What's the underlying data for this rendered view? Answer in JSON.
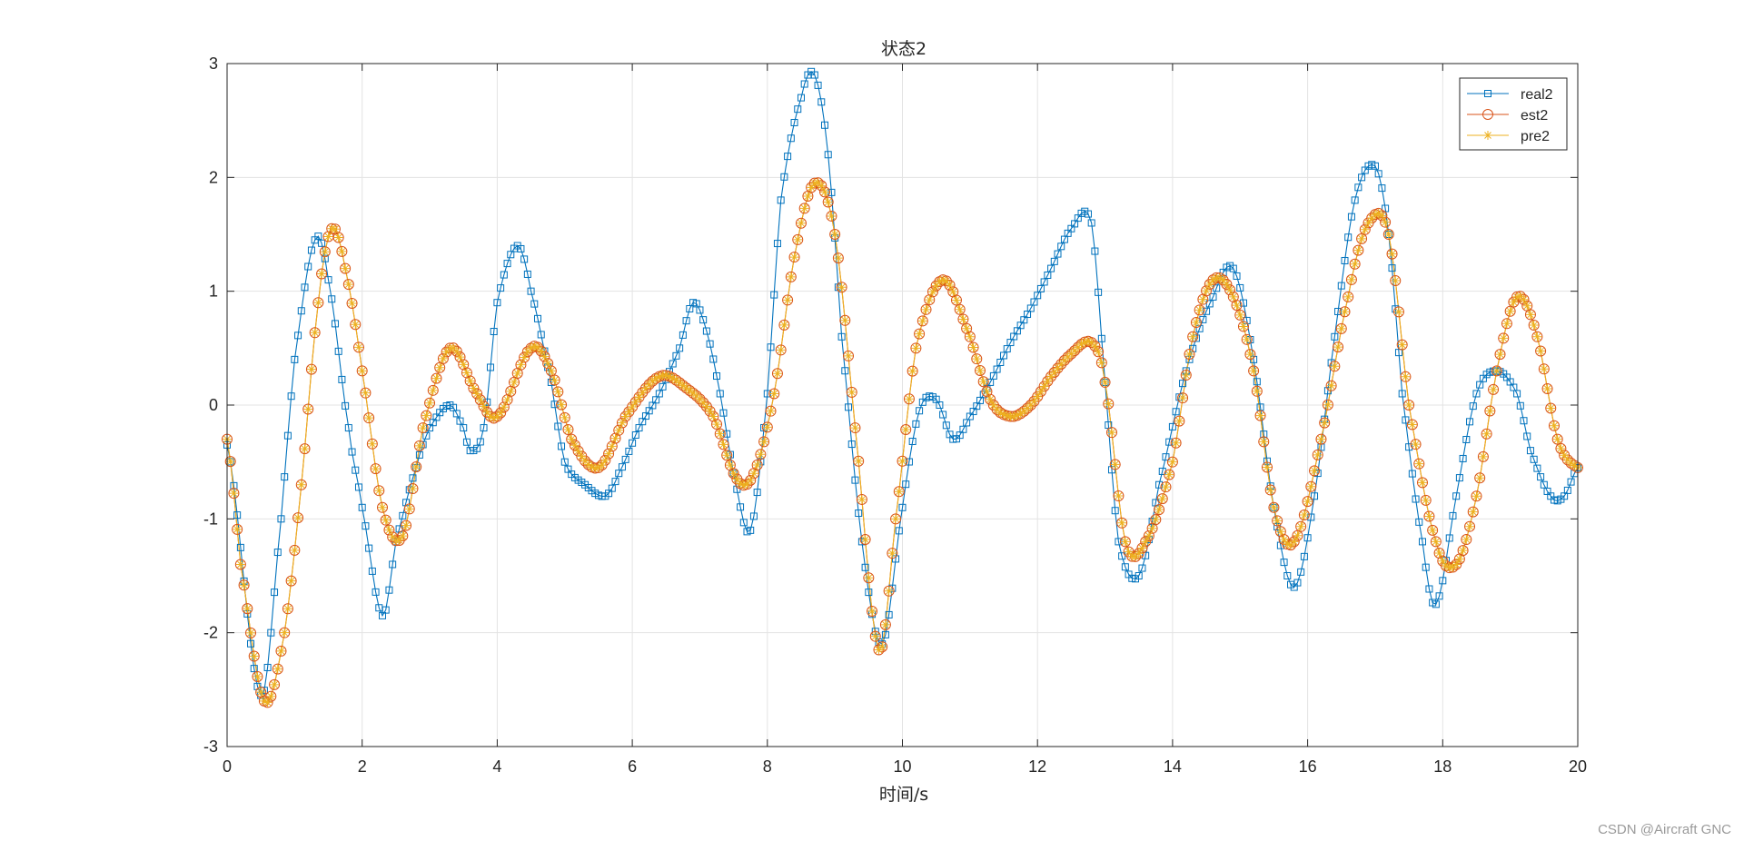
{
  "chart_data": {
    "type": "line",
    "title": "状态2",
    "xlabel": "时间/s",
    "ylabel": "",
    "xlim": [
      0,
      20
    ],
    "ylim": [
      -3,
      3
    ],
    "xticks": [
      0,
      2,
      4,
      6,
      8,
      10,
      12,
      14,
      16,
      18,
      20
    ],
    "yticks": [
      -3,
      -2,
      -1,
      0,
      1,
      2,
      3
    ],
    "grid": true,
    "legend_position": "top-right",
    "series": [
      {
        "name": "real2",
        "color": "#0072BD",
        "marker": "square",
        "x": [
          0.0,
          0.5,
          0.8,
          1.0,
          1.3,
          1.5,
          1.8,
          2.0,
          2.3,
          2.5,
          2.8,
          3.0,
          3.3,
          3.5,
          3.6,
          3.8,
          4.0,
          4.3,
          4.5,
          4.8,
          5.0,
          5.3,
          5.6,
          5.8,
          6.1,
          6.4,
          6.7,
          6.9,
          7.1,
          7.3,
          7.5,
          7.75,
          8.0,
          8.2,
          8.5,
          8.7,
          8.9,
          9.1,
          9.4,
          9.7,
          10.0,
          10.25,
          10.5,
          10.75,
          11.0,
          11.3,
          11.6,
          11.9,
          12.2,
          12.5,
          12.8,
          13.0,
          13.2,
          13.5,
          13.8,
          14.2,
          14.6,
          14.9,
          15.2,
          15.5,
          15.8,
          16.1,
          16.4,
          16.7,
          17.0,
          17.2,
          17.4,
          17.7,
          17.9,
          18.2,
          18.5,
          18.8,
          19.1,
          19.3,
          19.6,
          19.8,
          20.0
        ],
        "values": [
          -0.35,
          -2.55,
          -1.0,
          0.4,
          1.45,
          1.1,
          -0.2,
          -0.9,
          -1.85,
          -1.2,
          -0.55,
          -0.2,
          0.0,
          -0.2,
          -0.4,
          -0.2,
          0.9,
          1.4,
          1.0,
          0.2,
          -0.5,
          -0.7,
          -0.8,
          -0.6,
          -0.2,
          0.1,
          0.5,
          0.9,
          0.65,
          0.1,
          -0.6,
          -1.1,
          0.1,
          1.8,
          2.7,
          2.9,
          2.2,
          0.6,
          -1.2,
          -2.1,
          -0.9,
          -0.05,
          0.05,
          -0.3,
          -0.1,
          0.2,
          0.55,
          0.85,
          1.2,
          1.55,
          1.6,
          0.2,
          -1.2,
          -1.5,
          -0.7,
          0.3,
          0.95,
          1.2,
          0.4,
          -0.9,
          -1.6,
          -0.8,
          0.6,
          1.8,
          2.1,
          1.5,
          0.1,
          -1.2,
          -1.75,
          -0.8,
          0.1,
          0.3,
          0.1,
          -0.4,
          -0.8,
          -0.8,
          -0.55
        ]
      },
      {
        "name": "est2",
        "color": "#D95319",
        "marker": "circle",
        "x": [
          0.0,
          0.2,
          0.55,
          0.85,
          1.1,
          1.35,
          1.55,
          1.75,
          2.0,
          2.3,
          2.6,
          2.9,
          3.3,
          3.7,
          4.0,
          4.5,
          4.8,
          5.1,
          5.5,
          5.9,
          6.4,
          6.8,
          7.2,
          7.55,
          7.8,
          8.1,
          8.4,
          8.7,
          9.0,
          9.3,
          9.65,
          9.9,
          10.2,
          10.6,
          11.0,
          11.3,
          11.6,
          11.9,
          12.2,
          12.5,
          12.8,
          13.0,
          13.3,
          13.6,
          14.0,
          14.3,
          14.6,
          14.9,
          15.2,
          15.5,
          15.8,
          16.2,
          16.6,
          16.9,
          17.2,
          17.5,
          17.9,
          18.2,
          18.5,
          18.8,
          19.1,
          19.4,
          19.7,
          20.0
        ],
        "values": [
          -0.3,
          -1.4,
          -2.6,
          -2.0,
          -0.7,
          0.9,
          1.55,
          1.2,
          0.3,
          -0.9,
          -1.15,
          -0.2,
          0.5,
          0.1,
          -0.1,
          0.5,
          0.3,
          -0.3,
          -0.55,
          -0.1,
          0.25,
          0.15,
          -0.1,
          -0.65,
          -0.6,
          0.1,
          1.3,
          1.95,
          1.5,
          -0.2,
          -2.15,
          -1.0,
          0.5,
          1.1,
          0.6,
          0.05,
          -0.1,
          0.0,
          0.25,
          0.45,
          0.55,
          0.2,
          -1.2,
          -1.2,
          -0.5,
          0.6,
          1.1,
          0.95,
          0.3,
          -0.9,
          -1.2,
          -0.3,
          0.95,
          1.6,
          1.5,
          0.0,
          -1.2,
          -1.4,
          -0.8,
          0.3,
          0.95,
          0.6,
          -0.3,
          -0.55
        ]
      },
      {
        "name": "pre2",
        "color": "#EDB120",
        "marker": "asterisk",
        "x": [
          0.0,
          0.2,
          0.55,
          0.85,
          1.1,
          1.35,
          1.55,
          1.75,
          2.0,
          2.3,
          2.6,
          2.9,
          3.3,
          3.7,
          4.0,
          4.5,
          4.8,
          5.1,
          5.5,
          5.9,
          6.4,
          6.8,
          7.2,
          7.55,
          7.8,
          8.1,
          8.4,
          8.7,
          9.0,
          9.3,
          9.65,
          9.9,
          10.2,
          10.6,
          11.0,
          11.3,
          11.6,
          11.9,
          12.2,
          12.5,
          12.8,
          13.0,
          13.3,
          13.6,
          14.0,
          14.3,
          14.6,
          14.9,
          15.2,
          15.5,
          15.8,
          16.2,
          16.6,
          16.9,
          17.2,
          17.5,
          17.9,
          18.2,
          18.5,
          18.8,
          19.1,
          19.4,
          19.7,
          20.0
        ],
        "values": [
          -0.3,
          -1.4,
          -2.6,
          -2.0,
          -0.7,
          0.9,
          1.55,
          1.2,
          0.3,
          -0.9,
          -1.15,
          -0.2,
          0.5,
          0.1,
          -0.1,
          0.5,
          0.3,
          -0.3,
          -0.55,
          -0.1,
          0.25,
          0.15,
          -0.1,
          -0.65,
          -0.6,
          0.1,
          1.3,
          1.95,
          1.5,
          -0.2,
          -2.15,
          -1.0,
          0.5,
          1.1,
          0.6,
          0.05,
          -0.1,
          0.0,
          0.25,
          0.45,
          0.55,
          0.2,
          -1.2,
          -1.2,
          -0.5,
          0.6,
          1.1,
          0.95,
          0.3,
          -0.9,
          -1.2,
          -0.3,
          0.95,
          1.6,
          1.5,
          0.0,
          -1.2,
          -1.4,
          -0.8,
          0.3,
          0.95,
          0.6,
          -0.3,
          -0.55
        ]
      }
    ]
  },
  "watermark": "CSDN @Aircraft GNC"
}
